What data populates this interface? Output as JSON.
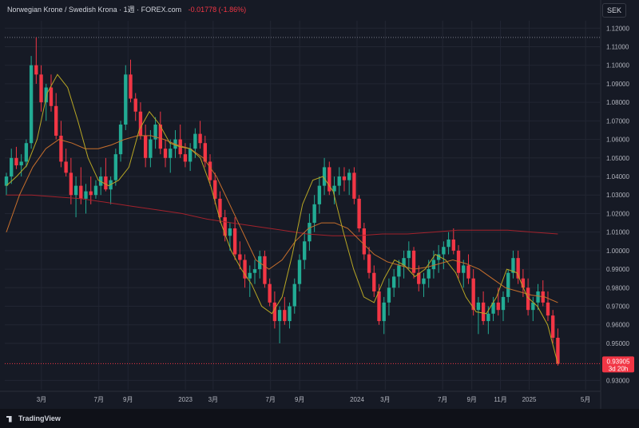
{
  "header": {
    "title": "Norwegian Krone / Swedish Krona · 1週 · FOREX.com",
    "change": "-0.01778 (-1.86%)"
  },
  "currency_label": "SEK",
  "logo": "TradingView",
  "colors": {
    "up": "#22ab94",
    "down": "#f23645",
    "ma_fast": "#b7a624",
    "ma_mid": "#c76f2c",
    "ma_slow": "#a3222c",
    "bg": "#161a25",
    "grid": "#222633"
  },
  "price_badge": {
    "price": "0.93905",
    "countdown": "3d 20h"
  },
  "chart_data": {
    "type": "candlestick",
    "y_ticks": [
      "1.12000",
      "1.11000",
      "1.10000",
      "1.09000",
      "1.08000",
      "1.07000",
      "1.06000",
      "1.05000",
      "1.04000",
      "1.03000",
      "1.02000",
      "1.01000",
      "1.00000",
      "0.99000",
      "0.98000",
      "0.97000",
      "0.96000",
      "0.95000",
      "0.93000"
    ],
    "ylim": [
      0.925,
      1.124
    ],
    "x_ticks": [
      "3月",
      "7月",
      "9月",
      "2023",
      "3月",
      "7月",
      "9月",
      "2024",
      "3月",
      "7月",
      "9月",
      "11月",
      "2025",
      "5月"
    ],
    "x_tick_dates": [
      "2022-03-01",
      "2022-07-01",
      "2022-09-01",
      "2023-01-01",
      "2023-03-01",
      "2023-07-01",
      "2023-09-01",
      "2024-01-01",
      "2024-03-01",
      "2024-07-01",
      "2024-09-01",
      "2024-11-01",
      "2025-01-01",
      "2025-05-01"
    ],
    "xlim": [
      "2021-12-13",
      "2025-06-02"
    ],
    "high_line": 1.115,
    "last_price": 0.93905,
    "ohlc_key": [
      "O",
      "H",
      "L",
      "C"
    ],
    "ohlc": [
      [
        1.035,
        1.042,
        1.03,
        1.04
      ],
      [
        1.04,
        1.055,
        1.036,
        1.05
      ],
      [
        1.05,
        1.056,
        1.044,
        1.046
      ],
      [
        1.046,
        1.052,
        1.04,
        1.048
      ],
      [
        1.048,
        1.06,
        1.045,
        1.058
      ],
      [
        1.058,
        1.105,
        1.055,
        1.1
      ],
      [
        1.1,
        1.115,
        1.09,
        1.095
      ],
      [
        1.095,
        1.1,
        1.075,
        1.08
      ],
      [
        1.08,
        1.09,
        1.07,
        1.088
      ],
      [
        1.088,
        1.095,
        1.075,
        1.078
      ],
      [
        1.078,
        1.085,
        1.06,
        1.062
      ],
      [
        1.062,
        1.07,
        1.045,
        1.048
      ],
      [
        1.048,
        1.055,
        1.04,
        1.042
      ],
      [
        1.042,
        1.05,
        1.025,
        1.03
      ],
      [
        1.03,
        1.04,
        1.018,
        1.035
      ],
      [
        1.035,
        1.045,
        1.025,
        1.028
      ],
      [
        1.028,
        1.036,
        1.02,
        1.032
      ],
      [
        1.032,
        1.04,
        1.025,
        1.03
      ],
      [
        1.03,
        1.038,
        1.028,
        1.035
      ],
      [
        1.035,
        1.045,
        1.03,
        1.04
      ],
      [
        1.04,
        1.05,
        1.032,
        1.033
      ],
      [
        1.033,
        1.04,
        1.025,
        1.038
      ],
      [
        1.038,
        1.055,
        1.035,
        1.052
      ],
      [
        1.052,
        1.07,
        1.048,
        1.068
      ],
      [
        1.068,
        1.1,
        1.065,
        1.095
      ],
      [
        1.095,
        1.103,
        1.08,
        1.082
      ],
      [
        1.082,
        1.085,
        1.07,
        1.075
      ],
      [
        1.075,
        1.08,
        1.06,
        1.062
      ],
      [
        1.062,
        1.068,
        1.045,
        1.05
      ],
      [
        1.05,
        1.065,
        1.045,
        1.06
      ],
      [
        1.06,
        1.072,
        1.055,
        1.068
      ],
      [
        1.068,
        1.075,
        1.052,
        1.055
      ],
      [
        1.055,
        1.06,
        1.045,
        1.05
      ],
      [
        1.05,
        1.06,
        1.042,
        1.055
      ],
      [
        1.055,
        1.065,
        1.05,
        1.06
      ],
      [
        1.06,
        1.068,
        1.05,
        1.052
      ],
      [
        1.052,
        1.058,
        1.045,
        1.048
      ],
      [
        1.048,
        1.058,
        1.043,
        1.055
      ],
      [
        1.055,
        1.066,
        1.05,
        1.063
      ],
      [
        1.063,
        1.07,
        1.055,
        1.058
      ],
      [
        1.058,
        1.062,
        1.045,
        1.048
      ],
      [
        1.048,
        1.052,
        1.035,
        1.038
      ],
      [
        1.038,
        1.042,
        1.025,
        1.028
      ],
      [
        1.028,
        1.032,
        1.015,
        1.018
      ],
      [
        1.018,
        1.022,
        1.005,
        1.008
      ],
      [
        1.008,
        1.015,
        1.0,
        1.012
      ],
      [
        1.012,
        1.018,
        0.995,
        0.998
      ],
      [
        0.998,
        1.005,
        0.99,
        0.995
      ],
      [
        0.995,
        0.998,
        0.98,
        0.985
      ],
      [
        0.985,
        0.992,
        0.975,
        0.988
      ],
      [
        0.988,
        0.995,
        0.982,
        0.99
      ],
      [
        0.99,
        1.0,
        0.985,
        0.997
      ],
      [
        0.997,
        1.0,
        0.98,
        0.982
      ],
      [
        0.982,
        0.985,
        0.97,
        0.972
      ],
      [
        0.972,
        0.978,
        0.958,
        0.962
      ],
      [
        0.962,
        0.97,
        0.95,
        0.968
      ],
      [
        0.968,
        0.975,
        0.96,
        0.962
      ],
      [
        0.962,
        0.972,
        0.958,
        0.97
      ],
      [
        0.97,
        0.985,
        0.966,
        0.982
      ],
      [
        0.982,
        0.998,
        0.978,
        0.995
      ],
      [
        0.995,
        1.01,
        0.99,
        1.005
      ],
      [
        1.005,
        1.02,
        1.0,
        1.015
      ],
      [
        1.015,
        1.03,
        1.01,
        1.025
      ],
      [
        1.025,
        1.04,
        1.02,
        1.035
      ],
      [
        1.035,
        1.05,
        1.03,
        1.045
      ],
      [
        1.045,
        1.048,
        1.03,
        1.032
      ],
      [
        1.032,
        1.04,
        1.025,
        1.035
      ],
      [
        1.035,
        1.045,
        1.03,
        1.04
      ],
      [
        1.04,
        1.045,
        1.032,
        1.038
      ],
      [
        1.038,
        1.044,
        1.03,
        1.042
      ],
      [
        1.042,
        1.045,
        1.025,
        1.028
      ],
      [
        1.028,
        1.03,
        1.01,
        1.012
      ],
      [
        1.012,
        1.015,
        0.995,
        0.998
      ],
      [
        0.998,
        1.002,
        0.985,
        0.988
      ],
      [
        0.988,
        0.992,
        0.975,
        0.978
      ],
      [
        0.978,
        0.982,
        0.96,
        0.962
      ],
      [
        0.962,
        0.975,
        0.955,
        0.972
      ],
      [
        0.972,
        0.985,
        0.965,
        0.98
      ],
      [
        0.98,
        0.99,
        0.975,
        0.986
      ],
      [
        0.986,
        0.995,
        0.98,
        0.992
      ],
      [
        0.992,
        1.0,
        0.985,
        0.996
      ],
      [
        0.996,
        1.005,
        0.99,
        1.0
      ],
      [
        1.0,
        1.002,
        0.985,
        0.988
      ],
      [
        0.988,
        0.992,
        0.978,
        0.982
      ],
      [
        0.982,
        0.988,
        0.975,
        0.985
      ],
      [
        0.985,
        0.995,
        0.98,
        0.99
      ],
      [
        0.99,
        1.0,
        0.985,
        0.995
      ],
      [
        0.995,
        1.003,
        0.988,
        0.998
      ],
      [
        0.998,
        1.005,
        0.99,
        1.002
      ],
      [
        1.002,
        1.01,
        0.998,
        1.006
      ],
      [
        1.006,
        1.012,
        0.998,
        1.0
      ],
      [
        1.0,
        1.003,
        0.985,
        0.988
      ],
      [
        0.988,
        0.995,
        0.98,
        0.992
      ],
      [
        0.992,
        0.998,
        0.982,
        0.985
      ],
      [
        0.985,
        0.99,
        0.965,
        0.968
      ],
      [
        0.968,
        0.975,
        0.955,
        0.972
      ],
      [
        0.972,
        0.978,
        0.96,
        0.962
      ],
      [
        0.962,
        0.97,
        0.955,
        0.966
      ],
      [
        0.966,
        0.975,
        0.962,
        0.972
      ],
      [
        0.972,
        0.98,
        0.965,
        0.968
      ],
      [
        0.968,
        0.978,
        0.962,
        0.975
      ],
      [
        0.975,
        0.99,
        0.972,
        0.988
      ],
      [
        0.988,
        1.0,
        0.985,
        0.996
      ],
      [
        0.996,
        1.0,
        0.982,
        0.985
      ],
      [
        0.985,
        0.99,
        0.975,
        0.98
      ],
      [
        0.98,
        0.985,
        0.965,
        0.968
      ],
      [
        0.968,
        0.975,
        0.962,
        0.972
      ],
      [
        0.972,
        0.982,
        0.968,
        0.978
      ],
      [
        0.978,
        0.984,
        0.97,
        0.972
      ],
      [
        0.972,
        0.978,
        0.962,
        0.965
      ],
      [
        0.965,
        0.968,
        0.95,
        0.953
      ],
      [
        0.953,
        0.958,
        0.938,
        0.939
      ]
    ],
    "ma_fast": [
      1.035,
      1.04,
      1.046,
      1.06,
      1.085,
      1.095,
      1.088,
      1.07,
      1.05,
      1.038,
      1.035,
      1.038,
      1.045,
      1.065,
      1.075,
      1.068,
      1.058,
      1.056,
      1.055,
      1.05,
      1.035,
      1.015,
      1.0,
      0.99,
      0.982,
      0.97,
      0.966,
      0.975,
      0.998,
      1.025,
      1.038,
      1.04,
      1.032,
      1.01,
      0.99,
      0.975,
      0.972,
      0.985,
      0.995,
      0.992,
      0.986,
      0.99,
      0.998,
      0.995,
      0.988,
      0.975,
      0.967,
      0.966,
      0.975,
      0.99,
      0.988,
      0.975,
      0.97,
      0.96,
      0.939
    ],
    "ma_mid": [
      1.01,
      1.03,
      1.045,
      1.055,
      1.06,
      1.058,
      1.055,
      1.055,
      1.057,
      1.06,
      1.062,
      1.062,
      1.06,
      1.057,
      1.055,
      1.05,
      1.04,
      1.025,
      1.01,
      0.995,
      0.99,
      0.995,
      1.005,
      1.012,
      1.015,
      1.015,
      1.012,
      1.005,
      0.998,
      0.994,
      0.992,
      0.99,
      0.991,
      0.993,
      0.995,
      0.993,
      0.99,
      0.985,
      0.98,
      0.978,
      0.976,
      0.975,
      0.972
    ],
    "ma_slow": [
      1.03,
      1.03,
      1.029,
      1.028,
      1.026,
      1.024,
      1.022,
      1.02,
      1.017,
      1.015,
      1.013,
      1.011,
      1.009,
      1.008,
      1.008,
      1.009,
      1.009,
      1.01,
      1.011,
      1.011,
      1.011,
      1.01,
      1.009
    ]
  }
}
